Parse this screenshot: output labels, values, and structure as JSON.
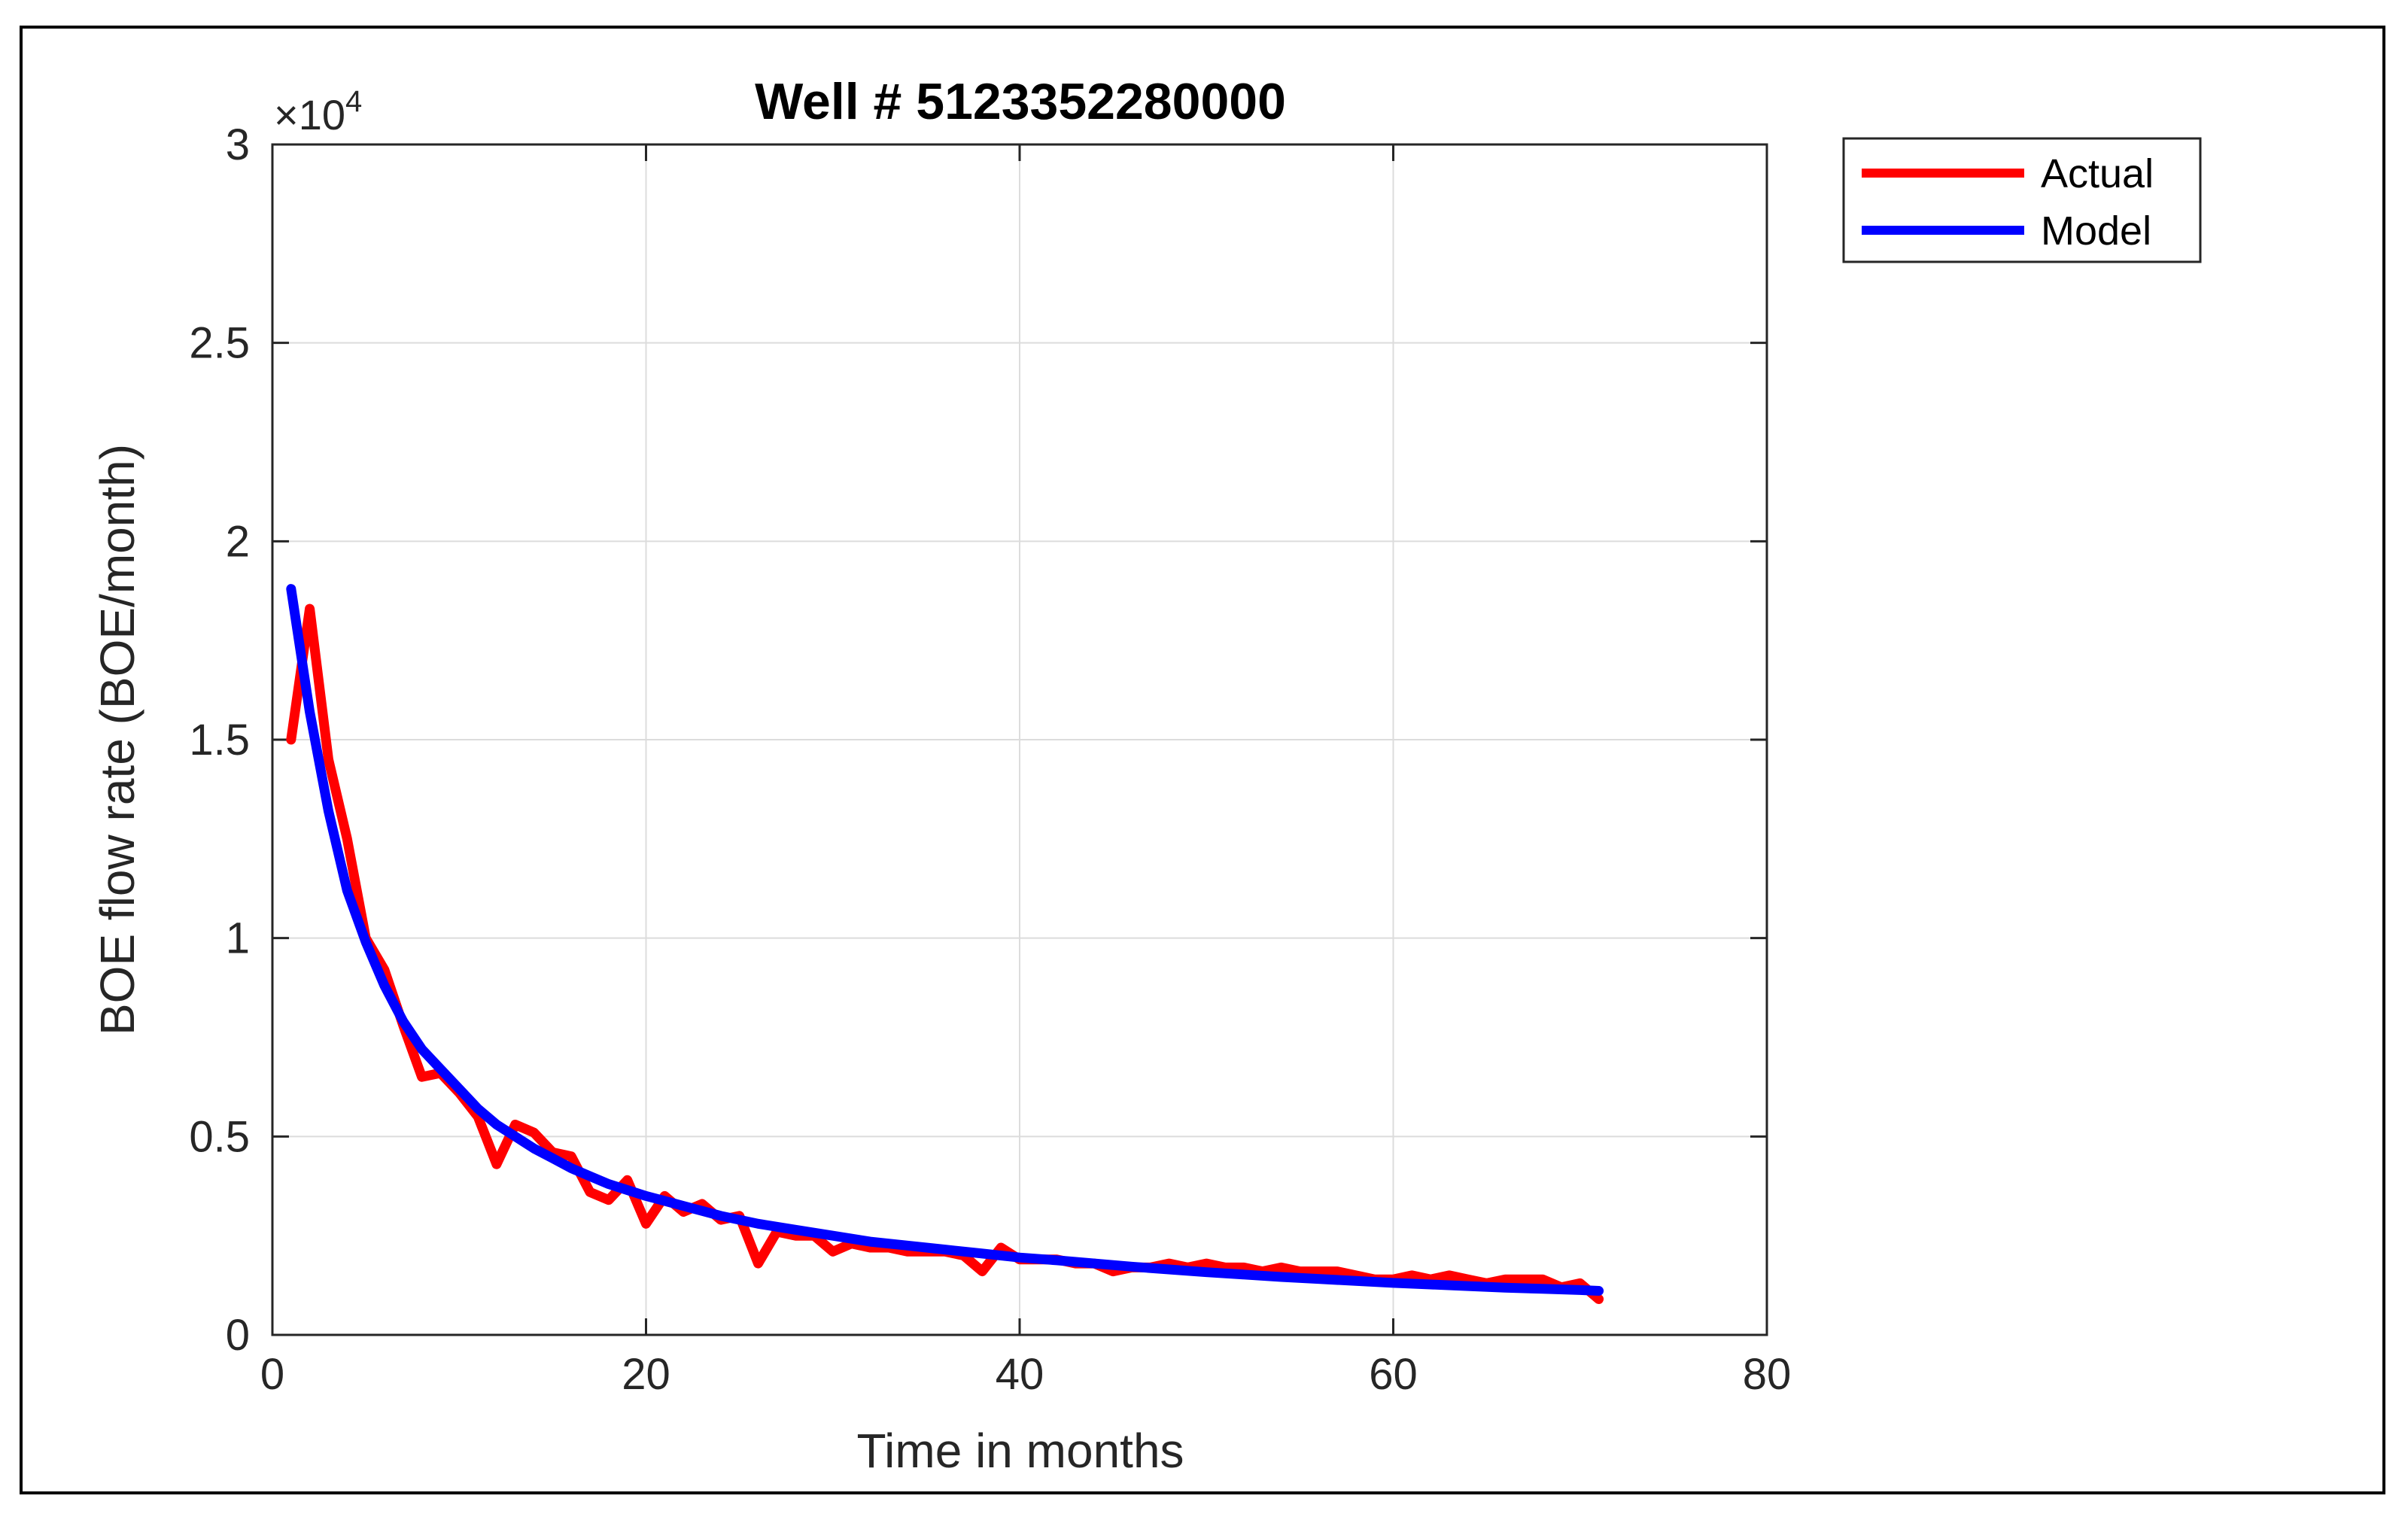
{
  "chart_data": {
    "type": "line",
    "title": "Well # 5123352280000",
    "xlabel": "Time in months",
    "ylabel": "BOE flow rate (BOE/month)",
    "y_exponent_label": "×10",
    "y_exponent_power": "4",
    "xlim": [
      0,
      80
    ],
    "ylim": [
      0,
      3
    ],
    "xticks": [
      0,
      20,
      40,
      60,
      80
    ],
    "xtick_labels": [
      "0",
      "20",
      "40",
      "60",
      "80"
    ],
    "yticks": [
      0,
      0.5,
      1,
      1.5,
      2,
      2.5,
      3
    ],
    "ytick_labels": [
      "0",
      "0.5",
      "1",
      "1.5",
      "2",
      "2.5",
      "3"
    ],
    "grid": true,
    "legend_position": "outside-top-right",
    "series": [
      {
        "name": "Actual",
        "color": "#ff0000",
        "x": [
          1,
          2,
          3,
          4,
          5,
          6,
          7,
          8,
          9,
          10,
          11,
          12,
          13,
          14,
          15,
          16,
          17,
          18,
          19,
          20,
          21,
          22,
          23,
          24,
          25,
          26,
          27,
          28,
          29,
          30,
          31,
          32,
          33,
          34,
          35,
          36,
          37,
          38,
          39,
          40,
          41,
          42,
          43,
          44,
          45,
          46,
          47,
          48,
          49,
          50,
          51,
          52,
          53,
          54,
          55,
          56,
          57,
          58,
          59,
          60,
          61,
          62,
          63,
          64,
          65,
          66,
          67,
          68,
          69,
          70,
          71
        ],
        "values": [
          1.5,
          1.83,
          1.45,
          1.25,
          1.0,
          0.92,
          0.78,
          0.65,
          0.66,
          0.61,
          0.55,
          0.43,
          0.53,
          0.51,
          0.46,
          0.45,
          0.36,
          0.34,
          0.39,
          0.28,
          0.35,
          0.31,
          0.33,
          0.29,
          0.3,
          0.18,
          0.26,
          0.25,
          0.25,
          0.21,
          0.23,
          0.22,
          0.22,
          0.21,
          0.21,
          0.21,
          0.2,
          0.16,
          0.22,
          0.19,
          0.19,
          0.19,
          0.18,
          0.18,
          0.16,
          0.17,
          0.17,
          0.18,
          0.17,
          0.18,
          0.17,
          0.17,
          0.16,
          0.17,
          0.16,
          0.16,
          0.16,
          0.15,
          0.14,
          0.14,
          0.15,
          0.14,
          0.15,
          0.14,
          0.13,
          0.14,
          0.14,
          0.14,
          0.12,
          0.13,
          0.09
        ]
      },
      {
        "name": "Model",
        "color": "#0000ff",
        "x": [
          1,
          2,
          3,
          4,
          5,
          6,
          7,
          8,
          9,
          10,
          11,
          12,
          13,
          14,
          15,
          16,
          17,
          18,
          19,
          20,
          22,
          24,
          26,
          28,
          30,
          32,
          34,
          36,
          38,
          40,
          42,
          44,
          46,
          48,
          50,
          52,
          54,
          56,
          58,
          60,
          62,
          64,
          66,
          68,
          70,
          71
        ],
        "values": [
          1.88,
          1.57,
          1.32,
          1.12,
          0.99,
          0.88,
          0.79,
          0.72,
          0.67,
          0.62,
          0.57,
          0.53,
          0.5,
          0.47,
          0.445,
          0.42,
          0.4,
          0.38,
          0.365,
          0.35,
          0.325,
          0.3,
          0.28,
          0.265,
          0.25,
          0.235,
          0.225,
          0.215,
          0.205,
          0.195,
          0.188,
          0.18,
          0.172,
          0.165,
          0.158,
          0.152,
          0.146,
          0.141,
          0.136,
          0.131,
          0.127,
          0.123,
          0.119,
          0.116,
          0.113,
          0.111
        ]
      }
    ]
  }
}
